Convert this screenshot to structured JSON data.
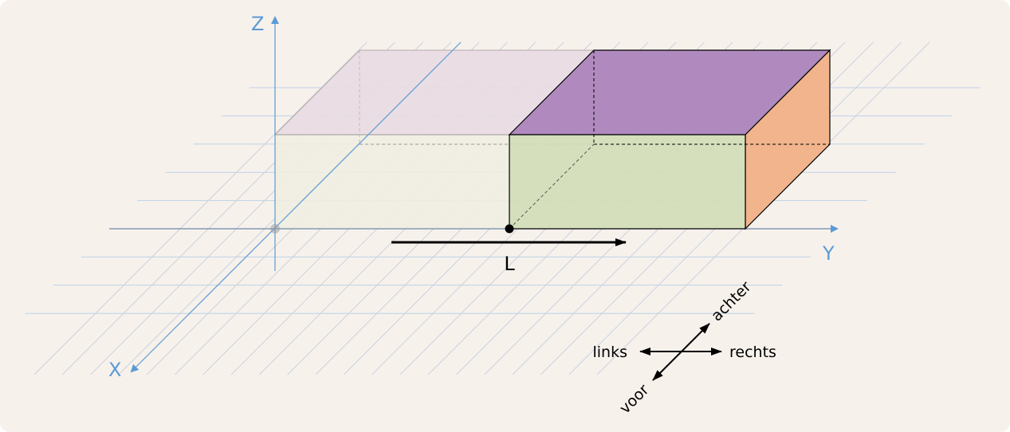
{
  "axes": {
    "x": "X",
    "y": "Y",
    "z": "Z"
  },
  "length_label": "L",
  "compass": {
    "left": "links",
    "right": "rechts",
    "back": "achter",
    "front": "voor"
  },
  "colors": {
    "background": "#f7f1ec",
    "axis": "#5b9bd5",
    "grid": "#bcd3e6",
    "ghost_top": "#e8dce3",
    "ghost_front": "#efeee2",
    "box_top": "#b08abe",
    "box_front": "#d1ddb7",
    "box_side": "#f1b48c"
  }
}
